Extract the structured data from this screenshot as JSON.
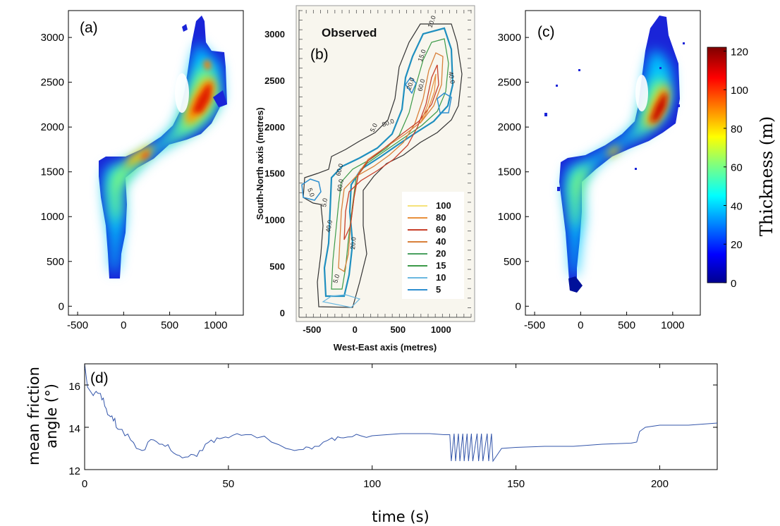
{
  "panels": {
    "a": {
      "label": "(a)",
      "x_ticks": [
        "-500",
        "0",
        "500",
        "1000"
      ],
      "y_ticks": [
        "0",
        "500",
        "1000",
        "1500",
        "2000",
        "2500",
        "3000"
      ]
    },
    "b": {
      "label": "(b)",
      "title": "Observed",
      "xlabel": "West-East axis (metres)",
      "ylabel": "South-North axis (metres)",
      "x_ticks": [
        "-500",
        "0",
        "500",
        "1000"
      ],
      "y_ticks": [
        "0",
        "500",
        "1000",
        "1500",
        "2000",
        "2500",
        "3000"
      ],
      "contour_legend": [
        "100",
        "80",
        "60",
        "40",
        "20",
        "15",
        "10",
        "5"
      ],
      "contour_colors": [
        "#f5e27a",
        "#e8903c",
        "#c8402a",
        "#d8803a",
        "#4aa060",
        "#3c9a48",
        "#6ab8e0",
        "#2e8fd0"
      ],
      "contour_labels": [
        "10.0",
        "15.0",
        "40.0",
        "60.0",
        "80.0",
        "5.0",
        "20.0",
        "60.0",
        "60.0",
        "40.0",
        "5.0",
        "5.0",
        "20.0",
        "5.0"
      ]
    },
    "c": {
      "label": "(c)",
      "x_ticks": [
        "-500",
        "0",
        "500",
        "1000"
      ],
      "y_ticks": [
        "0",
        "500",
        "1000",
        "1500",
        "2000",
        "2500",
        "3000"
      ]
    }
  },
  "colorbar": {
    "label": "Thickness  (m)",
    "ticks": [
      "0",
      "20",
      "40",
      "60",
      "80",
      "100",
      "120"
    ],
    "range": [
      0,
      122
    ],
    "colormap": "jet"
  },
  "chart_data": [
    {
      "type": "heatmap",
      "panel": "(a)",
      "xlim": [
        -600,
        1300
      ],
      "ylim": [
        -100,
        3300
      ],
      "colorbar_range": [
        0,
        122
      ],
      "max_value_approx": 110
    },
    {
      "type": "heatmap",
      "panel": "(b)",
      "title": "Observed",
      "xlabel": "West-East axis (metres)",
      "ylabel": "South-North axis (metres)",
      "contour_levels": [
        5,
        10,
        15,
        20,
        40,
        60,
        80,
        100
      ]
    },
    {
      "type": "heatmap",
      "panel": "(c)",
      "xlim": [
        -600,
        1300
      ],
      "ylim": [
        -100,
        3300
      ],
      "colorbar_range": [
        0,
        122
      ],
      "max_value_approx": 115
    },
    {
      "type": "line",
      "panel": "(d)",
      "label": "(d)",
      "xlabel": "time (s)",
      "ylabel": "mean friction angle (°)",
      "ylabel_lines": [
        "mean friction",
        "angle (°)"
      ],
      "xlim": [
        0,
        220
      ],
      "ylim": [
        12,
        17
      ],
      "x_ticks": [
        "0",
        "50",
        "100",
        "150",
        "200"
      ],
      "y_ticks": [
        "12",
        "14",
        "16"
      ],
      "line_color": "#3355aa",
      "x": [
        0,
        1,
        2,
        3,
        4,
        5,
        6,
        7,
        8,
        9,
        10,
        11,
        12,
        14,
        16,
        18,
        20,
        22,
        24,
        26,
        28,
        30,
        32,
        34,
        36,
        38,
        40,
        42,
        44,
        46,
        48,
        50,
        53,
        56,
        60,
        65,
        70,
        73,
        76,
        78,
        80,
        83,
        86,
        88,
        90,
        93,
        96,
        100,
        105,
        110,
        115,
        120,
        125,
        127,
        127.5,
        128.5,
        129,
        130,
        130.5,
        131.5,
        132,
        133,
        133.5,
        134.5,
        135,
        136.5,
        137,
        138,
        138.5,
        140,
        140.5,
        141.5,
        142,
        145,
        150,
        160,
        170,
        180,
        190,
        192,
        193,
        195,
        200,
        205,
        210,
        215,
        220
      ],
      "y": [
        17,
        15.9,
        15.7,
        15.5,
        15.7,
        15.6,
        15.3,
        15.0,
        14.6,
        14.5,
        14.3,
        14.0,
        13.9,
        13.6,
        13.4,
        13.0,
        12.9,
        13.3,
        13.4,
        13.2,
        13.1,
        12.9,
        12.7,
        12.55,
        12.6,
        12.7,
        12.9,
        13.2,
        13.4,
        13.5,
        13.5,
        13.5,
        13.7,
        13.65,
        13.5,
        13.3,
        13.0,
        12.9,
        12.95,
        13.05,
        13.1,
        13.3,
        13.5,
        13.55,
        13.5,
        13.55,
        13.6,
        13.6,
        13.65,
        13.7,
        13.7,
        13.7,
        13.65,
        13.65,
        12.4,
        13.7,
        12.4,
        13.7,
        12.4,
        13.7,
        12.4,
        13.7,
        12.4,
        13.7,
        12.4,
        13.7,
        12.4,
        13.7,
        12.4,
        13.7,
        12.4,
        13.7,
        12.4,
        13.0,
        13.05,
        13.1,
        13.1,
        13.2,
        13.25,
        13.3,
        13.8,
        14.0,
        14.1,
        14.1,
        14.1,
        14.15,
        14.2
      ]
    }
  ]
}
